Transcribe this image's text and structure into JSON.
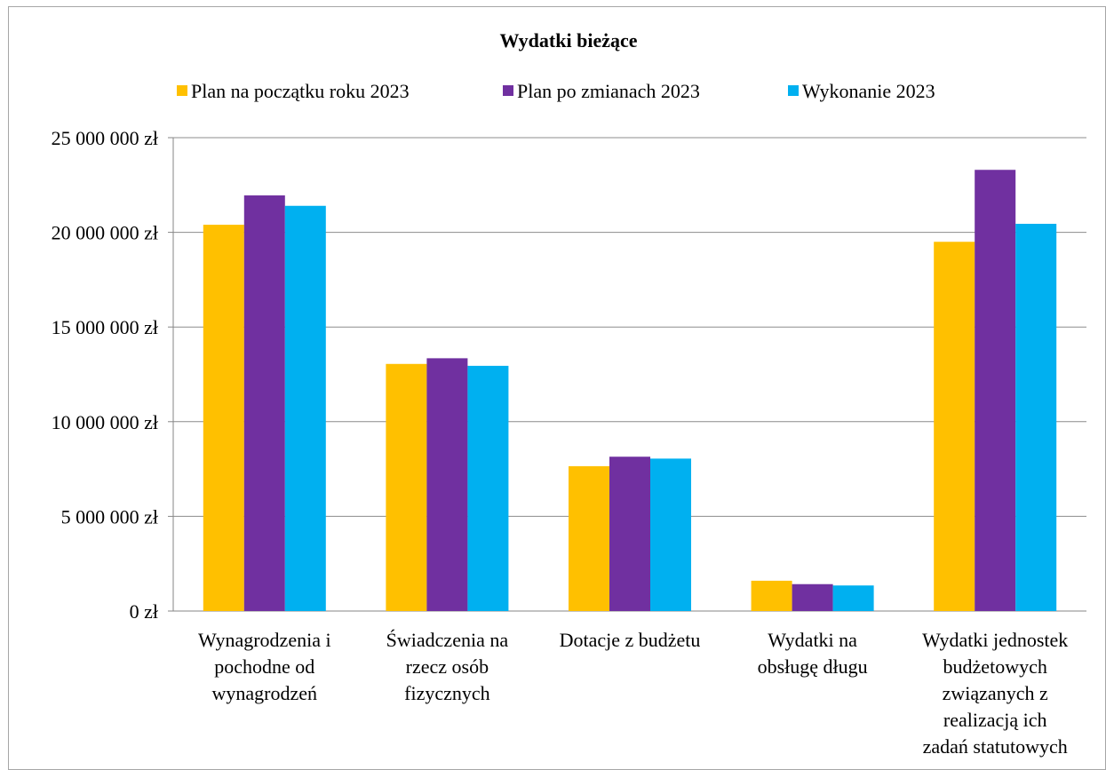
{
  "chart_data": {
    "type": "bar",
    "title": "Wydatki bieżące",
    "xlabel": "",
    "ylabel": "",
    "ylim": [
      0,
      25000000
    ],
    "yticks": [
      0,
      5000000,
      10000000,
      15000000,
      20000000,
      25000000
    ],
    "ytick_labels": [
      "0 zł",
      "5 000 000 zł",
      "10 000 000 zł",
      "15 000 000 zł",
      "20 000 000 zł",
      "25 000 000 zł"
    ],
    "grid": true,
    "legend_position": "top",
    "categories": [
      [
        "Wynagrodzenia i",
        "pochodne od",
        "wynagrodzeń"
      ],
      [
        "Świadczenia na",
        "rzecz osób",
        "fizycznych"
      ],
      [
        "Dotacje z budżetu"
      ],
      [
        "Wydatki na",
        "obsługę długu"
      ],
      [
        "Wydatki jednostek",
        "budżetowych",
        "związanych z",
        "realizacją  ich",
        "zadań statutowych"
      ]
    ],
    "series": [
      {
        "name": "Plan na początku roku 2023",
        "color": "#FFC000",
        "values": [
          20400000,
          13050000,
          7650000,
          1600000,
          19500000
        ]
      },
      {
        "name": "Plan po zmianach 2023",
        "color": "#7030A0",
        "values": [
          21950000,
          13350000,
          8150000,
          1420000,
          23300000
        ]
      },
      {
        "name": "Wykonanie 2023",
        "color": "#00B0F0",
        "values": [
          21400000,
          12950000,
          8050000,
          1350000,
          20450000
        ]
      }
    ]
  }
}
